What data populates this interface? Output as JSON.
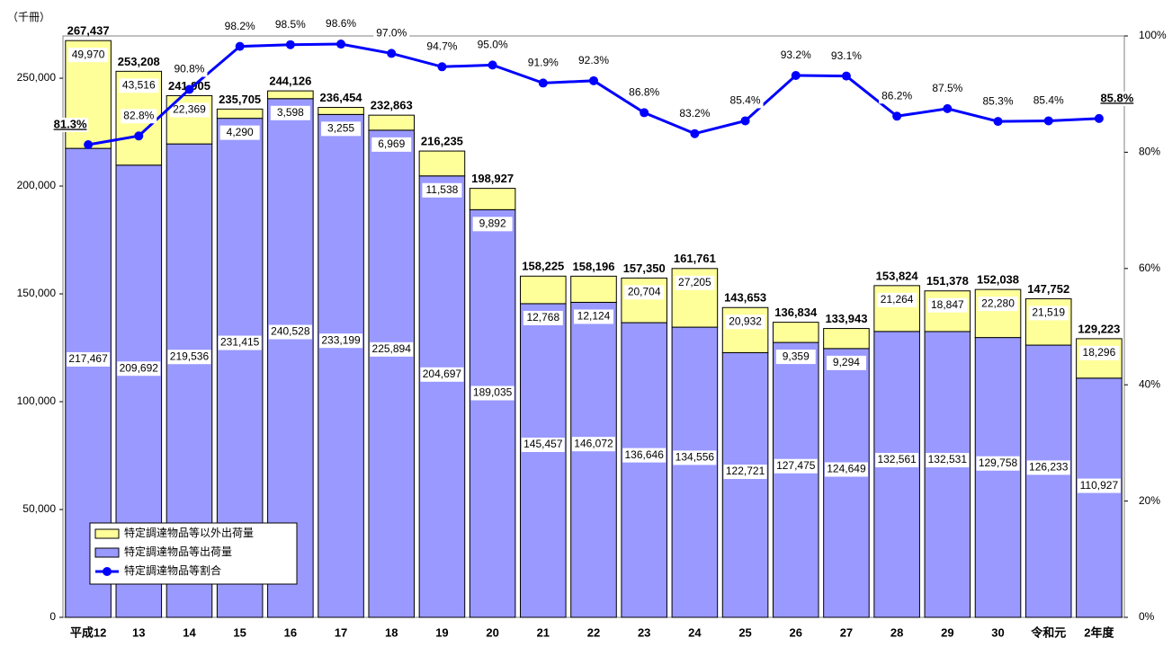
{
  "chart_data": {
    "type": "bar",
    "y_unit_label": "（千冊）",
    "categories": [
      "平成12",
      "13",
      "14",
      "15",
      "16",
      "17",
      "18",
      "19",
      "20",
      "21",
      "22",
      "23",
      "24",
      "25",
      "26",
      "27",
      "28",
      "29",
      "30",
      "令和元",
      "2年度"
    ],
    "series": [
      {
        "name": "特定調達物品等出荷量",
        "color": "#9999ff",
        "values": [
          217467,
          209692,
          219536,
          231415,
          240528,
          233199,
          225894,
          204697,
          189035,
          145457,
          146072,
          136646,
          134556,
          122721,
          127475,
          124649,
          132561,
          132531,
          129758,
          126233,
          110927
        ],
        "value_labels": [
          "217,467",
          "209,692",
          "219,536",
          "231,415",
          "240,528",
          "233,199",
          "225,894",
          "204,697",
          "189,035",
          "145,457",
          "146,072",
          "136,646",
          "134,556",
          "122,721",
          "127,475",
          "124,649",
          "132,561",
          "132,531",
          "129,758",
          "126,233",
          "110,927"
        ]
      },
      {
        "name": "特定調達物品等以外出荷量",
        "color": "#ffff99",
        "values": [
          49970,
          43516,
          22369,
          4290,
          3598,
          3255,
          6969,
          11538,
          9892,
          12768,
          12124,
          20704,
          27205,
          20932,
          9359,
          9294,
          21264,
          18847,
          22280,
          21519,
          18296
        ],
        "value_labels": [
          "49,970",
          "43,516",
          "22,369",
          "4,290",
          "3,598",
          "3,255",
          "6,969",
          "11,538",
          "9,892",
          "12,768",
          "12,124",
          "20,704",
          "27,205",
          "20,932",
          "9,359",
          "9,294",
          "21,264",
          "18,847",
          "22,280",
          "21,519",
          "18,296"
        ]
      },
      {
        "name": "特定調達物品等割合",
        "color": "#0000ff",
        "axis": "y2",
        "type": "line",
        "values": [
          81.3,
          82.8,
          90.8,
          98.2,
          98.5,
          98.6,
          97.0,
          94.7,
          95.0,
          91.9,
          92.3,
          86.8,
          83.2,
          85.4,
          93.2,
          93.1,
          86.2,
          87.5,
          85.3,
          85.4,
          85.8
        ],
        "value_labels": [
          "81.3%",
          "82.8%",
          "90.8%",
          "98.2%",
          "98.5%",
          "98.6%",
          "97.0%",
          "94.7%",
          "95.0%",
          "91.9%",
          "92.3%",
          "86.8%",
          "83.2%",
          "85.4%",
          "93.2%",
          "93.1%",
          "86.2%",
          "87.5%",
          "85.3%",
          "85.4%",
          "85.8%"
        ]
      }
    ],
    "totals": [
      267437,
      253208,
      241905,
      235705,
      244126,
      236454,
      232863,
      216235,
      198927,
      158225,
      158196,
      157350,
      161761,
      143653,
      136834,
      133943,
      153824,
      151378,
      152038,
      147752,
      129223
    ],
    "total_labels": [
      "267,437",
      "253,208",
      "241,905",
      "235,705",
      "244,126",
      "236,454",
      "232,863",
      "216,235",
      "198,927",
      "158,225",
      "158,196",
      "157,350",
      "161,761",
      "143,653",
      "136,834",
      "133,943",
      "153,824",
      "151,378",
      "152,038",
      "147,752",
      "129,223"
    ],
    "ylim": [
      0,
      269600
    ],
    "yticks": [
      0,
      {
        "value": 50000,
        "label": "50,000"
      },
      {
        "value": 100000,
        "label": "100,000"
      },
      {
        "value": 150000,
        "label": "150,000"
      },
      {
        "value": 200000,
        "label": "200,000"
      },
      {
        "value": 250000,
        "label": "250,000"
      }
    ],
    "y2lim": [
      0,
      100
    ],
    "y2ticks": [
      {
        "value": 0,
        "label": "0%"
      },
      {
        "value": 20,
        "label": "20%"
      },
      {
        "value": 40,
        "label": "40%"
      },
      {
        "value": 60,
        "label": "60%"
      },
      {
        "value": 80,
        "label": "80%"
      },
      {
        "value": 100,
        "label": "100%"
      }
    ],
    "legend": "lower-left"
  }
}
